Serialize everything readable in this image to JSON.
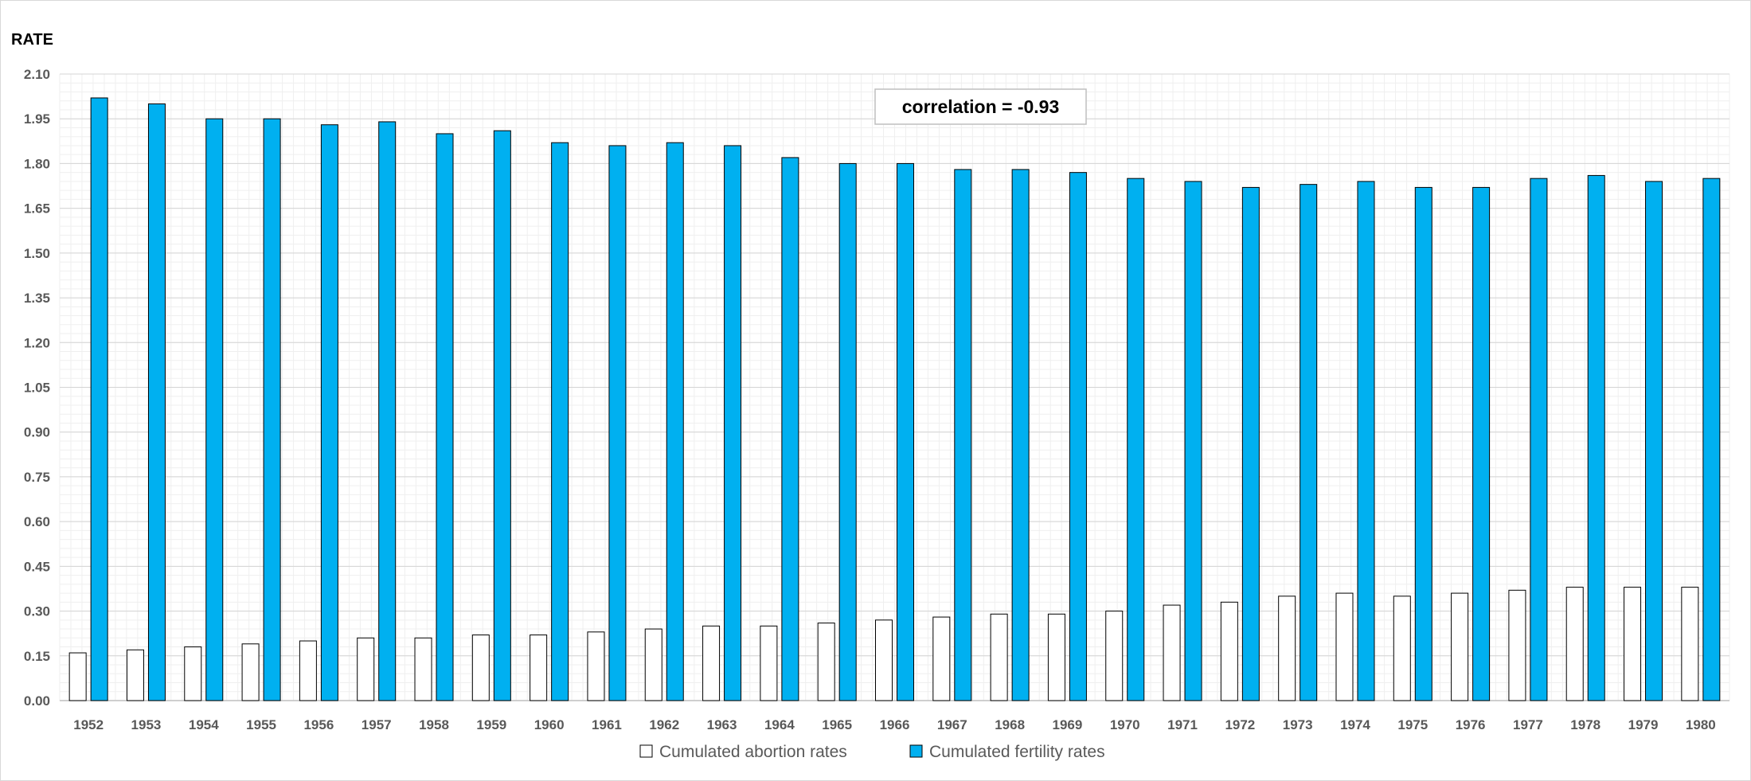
{
  "chart_data": {
    "type": "bar",
    "title": "",
    "xlabel": "",
    "ylabel": "RATE",
    "ylim": [
      0,
      2.1
    ],
    "yticks": [
      "0.00",
      "0.15",
      "0.30",
      "0.45",
      "0.60",
      "0.75",
      "0.90",
      "1.05",
      "1.20",
      "1.35",
      "1.50",
      "1.65",
      "1.80",
      "1.95",
      "2.10"
    ],
    "grid": true,
    "legend_position": "bottom",
    "annotation": "correlation = -0.93",
    "categories": [
      "1952",
      "1953",
      "1954",
      "1955",
      "1956",
      "1957",
      "1958",
      "1959",
      "1960",
      "1961",
      "1962",
      "1963",
      "1964",
      "1965",
      "1966",
      "1967",
      "1968",
      "1969",
      "1970",
      "1971",
      "1972",
      "1973",
      "1974",
      "1975",
      "1976",
      "1977",
      "1978",
      "1979",
      "1980"
    ],
    "series": [
      {
        "name": "Cumulated abortion rates",
        "color": "#ffffff",
        "stroke": "#000000",
        "values": [
          0.16,
          0.17,
          0.18,
          0.19,
          0.2,
          0.21,
          0.21,
          0.22,
          0.22,
          0.23,
          0.24,
          0.25,
          0.25,
          0.26,
          0.27,
          0.28,
          0.29,
          0.29,
          0.3,
          0.32,
          0.33,
          0.35,
          0.36,
          0.35,
          0.36,
          0.37,
          0.38,
          0.38,
          0.38
        ]
      },
      {
        "name": "Cumulated fertility rates",
        "color": "#00B0F0",
        "stroke": "#000000",
        "values": [
          2.02,
          2.0,
          1.95,
          1.95,
          1.93,
          1.94,
          1.9,
          1.91,
          1.87,
          1.86,
          1.87,
          1.86,
          1.82,
          1.8,
          1.8,
          1.78,
          1.78,
          1.77,
          1.75,
          1.74,
          1.72,
          1.73,
          1.74,
          1.72,
          1.72,
          1.75,
          1.76,
          1.74,
          1.75
        ]
      }
    ]
  }
}
